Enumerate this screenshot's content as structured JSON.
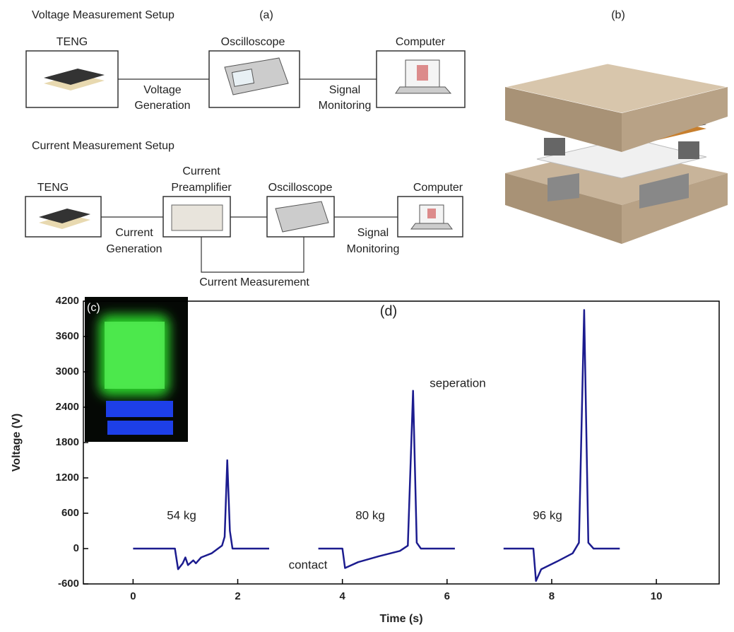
{
  "panel_a": {
    "label": "(a)",
    "voltage_setup": {
      "title": "Voltage Measurement Setup",
      "nodes": [
        "TENG",
        "Oscilloscope",
        "Computer"
      ],
      "edges": [
        [
          "Voltage",
          "Generation"
        ],
        [
          "Signal",
          "Monitoring"
        ]
      ]
    },
    "current_setup": {
      "title": "Current Measurement Setup",
      "nodes": [
        [
          "TENG"
        ],
        [
          "Current",
          "Preamplifier"
        ],
        [
          "Oscilloscope"
        ],
        [
          "Computer"
        ]
      ],
      "edges": [
        [
          "Current",
          "Generation"
        ],
        [
          "Signal",
          "Monitoring"
        ],
        [
          "Current Measurement"
        ]
      ]
    }
  },
  "panel_b": {
    "label": "(b)"
  },
  "panel_c": {
    "label": "(c)"
  },
  "chart_data": {
    "type": "line",
    "panel_label": "(d)",
    "x_label": "Time (s)",
    "y_label": "Voltage (V)",
    "xlim": [
      -0.95,
      11.2
    ],
    "ylim": [
      -600,
      4200
    ],
    "xticks": [
      0,
      2,
      4,
      6,
      8,
      10
    ],
    "yticks": [
      -600,
      0,
      600,
      1200,
      1800,
      2400,
      3000,
      3600,
      4200
    ],
    "series": [
      {
        "color": "#1c1c8f",
        "x": [
          0,
          0.8,
          0.86,
          0.95,
          1.0,
          1.05,
          1.15,
          1.2,
          1.3,
          1.5,
          1.7,
          1.75,
          1.8,
          1.85,
          1.9,
          2.6,
          null,
          3.54,
          4.0,
          4.05,
          4.3,
          4.7,
          5.1,
          5.25,
          5.35,
          5.42,
          5.5,
          6.15,
          null,
          7.08,
          7.65,
          7.7,
          7.8,
          8.1,
          8.4,
          8.52,
          8.62,
          8.7,
          8.8,
          9.3
        ],
        "values": [
          0,
          0,
          -350,
          -250,
          -150,
          -280,
          -200,
          -250,
          -150,
          -80,
          50,
          200,
          1500,
          300,
          0,
          0,
          null,
          0,
          0,
          -330,
          -230,
          -130,
          -40,
          50,
          2680,
          100,
          0,
          0,
          null,
          0,
          0,
          -550,
          -350,
          -220,
          -80,
          100,
          4050,
          100,
          0,
          0
        ]
      }
    ],
    "annotations": [
      "54 kg",
      "80 kg",
      "96 kg",
      "contact",
      "seperation"
    ]
  }
}
